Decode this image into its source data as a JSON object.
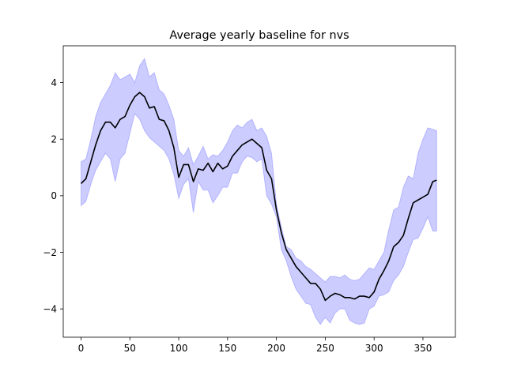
{
  "chart_data": {
    "type": "line",
    "title": "Average yearly baseline for nvs",
    "xlabel": "",
    "ylabel": "",
    "xlim": [
      -18.2,
      383.2
    ],
    "ylim": [
      -5.0,
      5.3
    ],
    "x_ticks": [
      0,
      50,
      100,
      150,
      200,
      250,
      300,
      350
    ],
    "y_ticks": [
      -4,
      -2,
      0,
      2,
      4
    ],
    "x_tick_labels": [
      "0",
      "50",
      "100",
      "150",
      "200",
      "250",
      "300",
      "350"
    ],
    "y_tick_labels": [
      "−4",
      "−2",
      "0",
      "2",
      "4"
    ],
    "grid": false,
    "colors": {
      "line": "#000000",
      "band": "#0000ff",
      "band_opacity": 0.2,
      "axes": "#000000"
    },
    "series": [
      {
        "kind": "mean",
        "x": [
          0,
          5,
          10,
          15,
          20,
          25,
          30,
          35,
          40,
          45,
          50,
          55,
          60,
          65,
          70,
          75,
          80,
          85,
          90,
          95,
          100,
          105,
          110,
          115,
          120,
          125,
          130,
          135,
          140,
          145,
          150,
          155,
          160,
          165,
          170,
          175,
          180,
          185,
          190,
          195,
          200,
          205,
          210,
          215,
          220,
          225,
          230,
          235,
          240,
          245,
          250,
          255,
          260,
          265,
          270,
          275,
          280,
          285,
          290,
          295,
          300,
          305,
          310,
          315,
          320,
          325,
          330,
          335,
          340,
          345,
          350,
          355,
          360,
          364
        ],
        "y": [
          0.43,
          0.6,
          1.2,
          1.8,
          2.3,
          2.6,
          2.6,
          2.4,
          2.7,
          2.8,
          3.2,
          3.5,
          3.65,
          3.5,
          3.1,
          3.15,
          2.7,
          2.65,
          2.3,
          1.7,
          0.65,
          1.1,
          1.1,
          0.5,
          0.95,
          0.9,
          1.15,
          0.85,
          1.15,
          0.95,
          1.05,
          1.4,
          1.6,
          1.8,
          1.9,
          2.0,
          1.85,
          1.7,
          0.9,
          0.6,
          -0.5,
          -1.3,
          -1.9,
          -2.2,
          -2.5,
          -2.7,
          -2.9,
          -3.1,
          -3.1,
          -3.3,
          -3.7,
          -3.55,
          -3.45,
          -3.5,
          -3.6,
          -3.6,
          -3.65,
          -3.55,
          -3.55,
          -3.6,
          -3.4,
          -2.95,
          -2.65,
          -2.3,
          -1.8,
          -1.65,
          -1.4,
          -0.8,
          -0.25,
          -0.15,
          -0.05,
          0.05,
          0.5,
          0.55
        ]
      },
      {
        "kind": "band_upper",
        "x": [
          0,
          5,
          10,
          15,
          20,
          25,
          30,
          35,
          40,
          45,
          50,
          55,
          60,
          65,
          70,
          75,
          80,
          85,
          90,
          95,
          100,
          105,
          110,
          115,
          120,
          125,
          130,
          135,
          140,
          145,
          150,
          155,
          160,
          165,
          170,
          175,
          180,
          185,
          190,
          195,
          200,
          205,
          210,
          215,
          220,
          225,
          230,
          235,
          240,
          245,
          250,
          255,
          260,
          265,
          270,
          275,
          280,
          285,
          290,
          295,
          300,
          305,
          310,
          315,
          320,
          325,
          330,
          335,
          340,
          345,
          350,
          355,
          360,
          364
        ],
        "y": [
          1.2,
          1.3,
          2.0,
          2.8,
          3.3,
          3.6,
          3.9,
          4.35,
          4.1,
          4.2,
          4.3,
          4.0,
          4.6,
          4.85,
          4.2,
          4.35,
          3.75,
          3.6,
          3.2,
          2.7,
          1.6,
          1.4,
          1.7,
          1.1,
          1.4,
          1.75,
          1.3,
          1.45,
          1.4,
          1.6,
          1.9,
          2.3,
          2.5,
          2.4,
          2.6,
          2.7,
          2.3,
          2.4,
          2.1,
          1.5,
          -0.3,
          -1.1,
          -1.8,
          -1.9,
          -2.2,
          -2.3,
          -2.5,
          -2.6,
          -2.75,
          -2.9,
          -3.05,
          -2.85,
          -2.85,
          -2.9,
          -2.8,
          -2.95,
          -3.0,
          -2.95,
          -2.75,
          -2.55,
          -2.6,
          -2.3,
          -2.0,
          -1.2,
          -0.5,
          -0.4,
          0.3,
          0.7,
          0.6,
          1.5,
          2.0,
          2.4,
          2.35,
          2.3
        ]
      },
      {
        "kind": "band_lower",
        "x": [
          0,
          5,
          10,
          15,
          20,
          25,
          30,
          35,
          40,
          45,
          50,
          55,
          60,
          65,
          70,
          75,
          80,
          85,
          90,
          95,
          100,
          105,
          110,
          115,
          120,
          125,
          130,
          135,
          140,
          145,
          150,
          155,
          160,
          165,
          170,
          175,
          180,
          185,
          190,
          195,
          200,
          205,
          210,
          215,
          220,
          225,
          230,
          235,
          240,
          245,
          250,
          255,
          260,
          265,
          270,
          275,
          280,
          285,
          290,
          295,
          300,
          305,
          310,
          315,
          320,
          325,
          330,
          335,
          340,
          345,
          350,
          355,
          360,
          364
        ],
        "y": [
          -0.35,
          -0.2,
          0.4,
          0.9,
          1.2,
          1.5,
          1.3,
          0.5,
          1.3,
          1.5,
          2.2,
          2.9,
          2.7,
          2.3,
          2.05,
          1.9,
          1.75,
          1.6,
          1.3,
          0.75,
          -0.1,
          0.4,
          0.6,
          -0.6,
          0.5,
          0.2,
          0.2,
          -0.25,
          0.0,
          0.3,
          0.3,
          0.8,
          0.8,
          1.2,
          1.4,
          1.35,
          1.2,
          1.3,
          0.0,
          -0.3,
          -0.75,
          -1.9,
          -2.3,
          -2.85,
          -3.3,
          -3.55,
          -3.8,
          -3.85,
          -4.3,
          -4.55,
          -4.3,
          -4.5,
          -4.15,
          -4.0,
          -4.0,
          -4.4,
          -4.5,
          -4.55,
          -4.5,
          -4.0,
          -3.9,
          -3.55,
          -3.5,
          -3.4,
          -3.0,
          -2.8,
          -2.5,
          -2.0,
          -1.55,
          -1.5,
          -1.15,
          -0.75,
          -1.25,
          -1.25
        ]
      }
    ]
  }
}
